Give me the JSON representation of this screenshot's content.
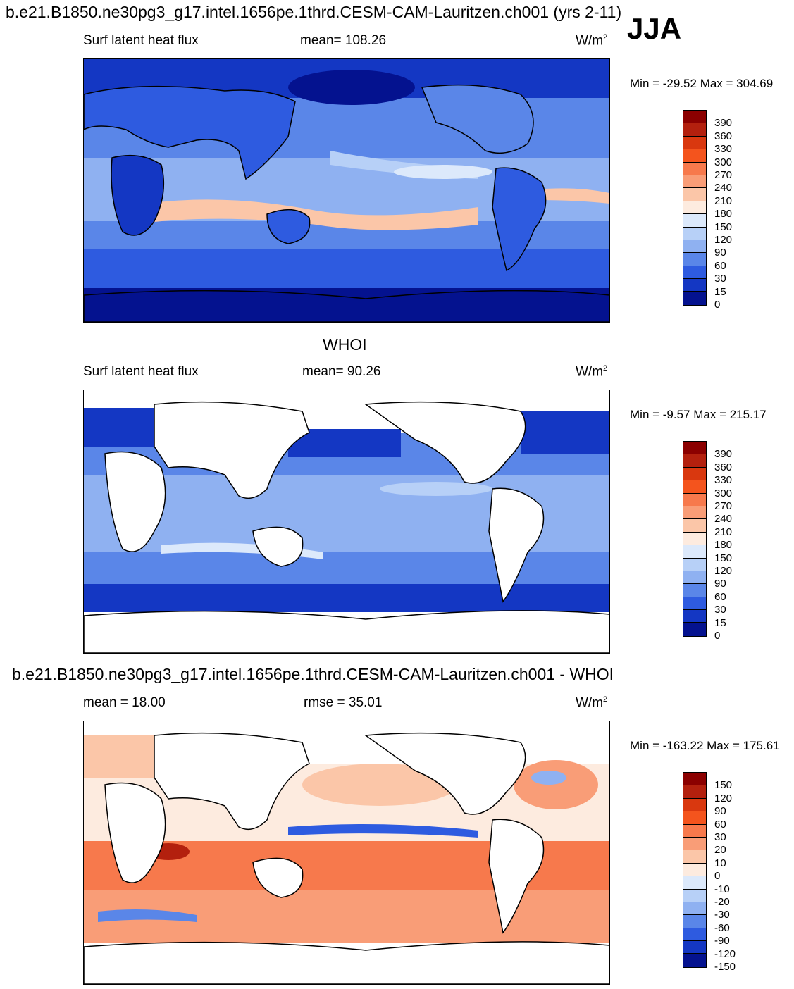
{
  "header": {
    "case_title": "b.e21.B1850.ne30pg3_g17.intel.1656pe.1thrd.CESM-CAM-Lauritzen.ch001 (yrs 2-11)",
    "season": "JJA"
  },
  "panels": [
    {
      "id": "model",
      "title_above": "",
      "field": "Surf latent heat flux",
      "stat": "mean= 108.26",
      "units_base": "W/m",
      "units_exp": "2",
      "minmax": "Min = -29.52 Max = 304.69"
    },
    {
      "id": "obs",
      "title_above": "WHOI",
      "field": "Surf latent heat flux",
      "stat": "mean=  90.26",
      "units_base": "W/m",
      "units_exp": "2",
      "minmax": "Min =  -9.57 Max = 215.17"
    },
    {
      "id": "diff",
      "title_above": "b.e21.B1850.ne30pg3_g17.intel.1656pe.1thrd.CESM-CAM-Lauritzen.ch001 - WHOI",
      "field": "mean =  18.00",
      "stat": "rmse =  35.01",
      "units_base": "W/m",
      "units_exp": "2",
      "minmax": "Min = -163.22 Max = 175.61"
    }
  ],
  "chart_data": [
    {
      "type": "heatmap",
      "title": "Surf latent heat flux (model, JJA)",
      "mean": 108.26,
      "min": -29.52,
      "max": 304.69,
      "colorbar_levels": [
        "390",
        "360",
        "330",
        "300",
        "270",
        "240",
        "210",
        "180",
        "150",
        "120",
        "90",
        "60",
        "30",
        "15",
        "0"
      ],
      "colorbar_colors": [
        "#8b0000",
        "#b3200e",
        "#d9380f",
        "#f4541d",
        "#f7794c",
        "#f99d77",
        "#fbc6a8",
        "#fdebdf",
        "#dce9fb",
        "#b7d0f7",
        "#8fb1f1",
        "#5a86e8",
        "#2e5be0",
        "#1437c3",
        "#04128f"
      ]
    },
    {
      "type": "heatmap",
      "title": "Surf latent heat flux (WHOI, JJA)",
      "mean": 90.26,
      "min": -9.57,
      "max": 215.17,
      "colorbar_levels": [
        "390",
        "360",
        "330",
        "300",
        "270",
        "240",
        "210",
        "180",
        "150",
        "120",
        "90",
        "60",
        "30",
        "15",
        "0"
      ],
      "colorbar_colors": [
        "#8b0000",
        "#b3200e",
        "#d9380f",
        "#f4541d",
        "#f7794c",
        "#f99d77",
        "#fbc6a8",
        "#fdebdf",
        "#dce9fb",
        "#b7d0f7",
        "#8fb1f1",
        "#5a86e8",
        "#2e5be0",
        "#1437c3",
        "#04128f"
      ]
    },
    {
      "type": "heatmap",
      "title": "Model - WHOI difference (JJA)",
      "mean": 18.0,
      "rmse": 35.01,
      "min": -163.22,
      "max": 175.61,
      "colorbar_levels": [
        "150",
        "120",
        "90",
        "60",
        "30",
        "20",
        "10",
        "0",
        "-10",
        "-20",
        "-30",
        "-60",
        "-90",
        "-120",
        "-150"
      ],
      "colorbar_colors": [
        "#8b0000",
        "#b3200e",
        "#d9380f",
        "#f4541d",
        "#f7794c",
        "#f99d77",
        "#fbc6a8",
        "#fdebdf",
        "#dce9fb",
        "#b7d0f7",
        "#8fb1f1",
        "#5a86e8",
        "#2e5be0",
        "#1437c3",
        "#04128f"
      ]
    }
  ]
}
